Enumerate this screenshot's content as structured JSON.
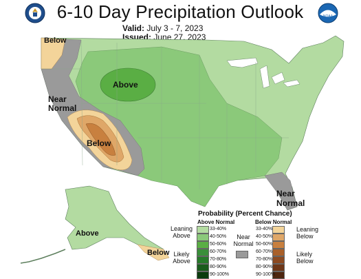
{
  "header": {
    "title": "6-10 Day Precipitation Outlook",
    "valid_label": "Valid:",
    "valid_value": "July 3 - 7, 2023",
    "issued_label": "Issued:",
    "issued_value": "June 27, 2023"
  },
  "logos": {
    "left_icon": "doc-seal-icon",
    "right_icon": "noaa-logo-icon",
    "right_text": "NOAA"
  },
  "map_labels": {
    "pacific_nw": "Below",
    "ca_nv": "Near\nNormal",
    "southwest": "Below",
    "central_rockies": "Above",
    "florida": "Near\nNormal",
    "alaska": "Above",
    "alaska_se": "Below"
  },
  "colors": {
    "above_33_40": "#b3dba1",
    "above_40_50": "#8bc97a",
    "above_50_60": "#5aae44",
    "above_60_70": "#3a8f3a",
    "above_70_80": "#277a2a",
    "above_80_90": "#1a5c1c",
    "above_90_100": "#0c3b0e",
    "below_33_40": "#f3d49a",
    "below_40_50": "#dfa768",
    "below_50_60": "#c8803f",
    "below_60_70": "#a9602a",
    "below_70_80": "#8c4a21",
    "below_80_90": "#6e3718",
    "below_90_100": "#4e2610",
    "near_normal": "#9a9a9a"
  },
  "legend": {
    "title": "Probability (Percent Chance)",
    "above_header": "Above Normal",
    "below_header": "Below Normal",
    "near_label": "Near\nNormal",
    "leaning_above": "Leaning\nAbove",
    "likely_above": "Likely\nAbove",
    "leaning_below": "Leaning\nBelow",
    "likely_below": "Likely\nBelow",
    "ranges": [
      "33-40%",
      "40-50%",
      "50-60%",
      "60-70%",
      "70-80%",
      "80-90%",
      "90-100%"
    ]
  }
}
